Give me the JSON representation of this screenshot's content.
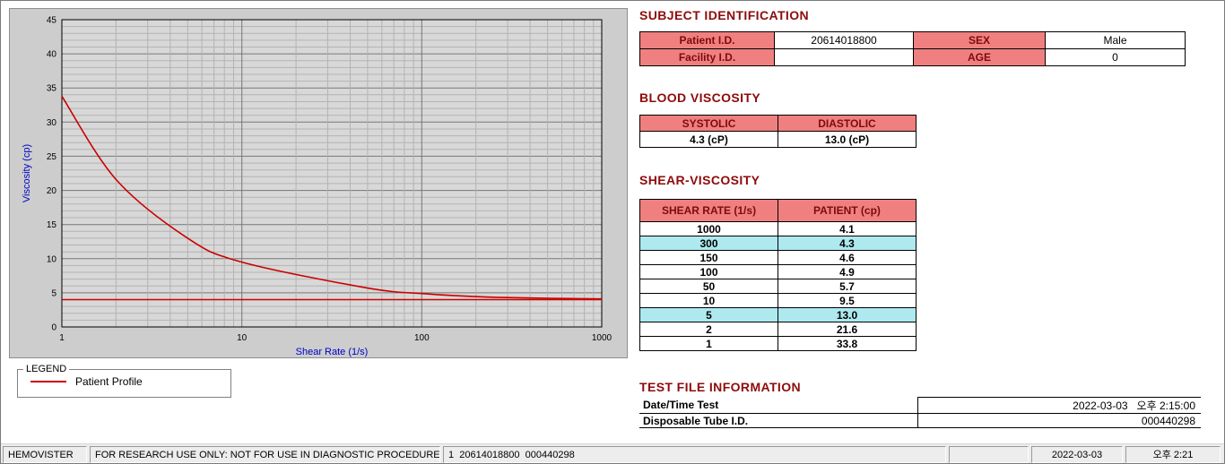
{
  "colors": {
    "heading": "#8e0b0b",
    "table_label_bg": "#f08080",
    "highlight_bg": "#aee9ef",
    "axis_label": "#0000c8",
    "profile_line": "#cc0000"
  },
  "chart_data": {
    "type": "line",
    "title": "",
    "xlabel": "Shear Rate (1/s)",
    "ylabel": "Viscosity (cp)",
    "x_scale": "log",
    "xlim": [
      1,
      1000
    ],
    "ylim": [
      0,
      45
    ],
    "x_ticks": [
      1,
      10,
      100,
      1000
    ],
    "y_ticks": [
      0,
      5,
      10,
      15,
      20,
      25,
      30,
      35,
      40,
      45
    ],
    "grid": true,
    "legend_position": "below-left groupbox",
    "series": [
      {
        "name": "Patient Profile",
        "color": "#cc0000",
        "x": [
          1,
          2,
          5,
          10,
          50,
          100,
          150,
          300,
          1000
        ],
        "y": [
          33.8,
          21.6,
          13.0,
          9.5,
          5.7,
          4.9,
          4.6,
          4.3,
          4.1
        ]
      },
      {
        "name": "reference-line",
        "type": "hline",
        "color": "#cc0000",
        "y": 4.0
      }
    ]
  },
  "legend": {
    "title": "LEGEND",
    "items": [
      {
        "label": "Patient Profile",
        "color": "#cc0000"
      }
    ]
  },
  "subject": {
    "heading": "SUBJECT IDENTIFICATION",
    "rows": [
      {
        "label1": "Patient I.D.",
        "value1": "20614018800",
        "label2": "SEX",
        "value2": "Male"
      },
      {
        "label1": "Facility I.D.",
        "value1": "",
        "label2": "AGE",
        "value2": "0"
      }
    ]
  },
  "blood": {
    "heading": "BLOOD VISCOSITY",
    "columns": [
      "SYSTOLIC",
      "DIASTOLIC"
    ],
    "values": [
      "4.3 (cP)",
      "13.0 (cP)"
    ]
  },
  "shear": {
    "heading": "SHEAR-VISCOSITY",
    "columns": [
      "SHEAR RATE (1/s)",
      "PATIENT (cp)"
    ],
    "rows": [
      {
        "rate": "1000",
        "value": "4.1",
        "highlight": false
      },
      {
        "rate": "300",
        "value": "4.3",
        "highlight": true
      },
      {
        "rate": "150",
        "value": "4.6",
        "highlight": false
      },
      {
        "rate": "100",
        "value": "4.9",
        "highlight": false
      },
      {
        "rate": "50",
        "value": "5.7",
        "highlight": false
      },
      {
        "rate": "10",
        "value": "9.5",
        "highlight": false
      },
      {
        "rate": "5",
        "value": "13.0",
        "highlight": true
      },
      {
        "rate": "2",
        "value": "21.6",
        "highlight": false
      },
      {
        "rate": "1",
        "value": "33.8",
        "highlight": false
      }
    ]
  },
  "testfile": {
    "heading": "TEST FILE INFORMATION",
    "rows": [
      {
        "label": "Date/Time Test",
        "value": "2022-03-03   오후 2:15:00"
      },
      {
        "label": "Disposable Tube I.D.",
        "value": "000440298"
      }
    ]
  },
  "statusbar": {
    "app_name": "HEMOVISTER",
    "disclaimer": "FOR RESEARCH USE ONLY: NOT FOR USE IN DIAGNOSTIC PROCEDURES",
    "record_info": "1  20614018800  000440298",
    "date": "2022-03-03",
    "time": "오후 2:21"
  }
}
